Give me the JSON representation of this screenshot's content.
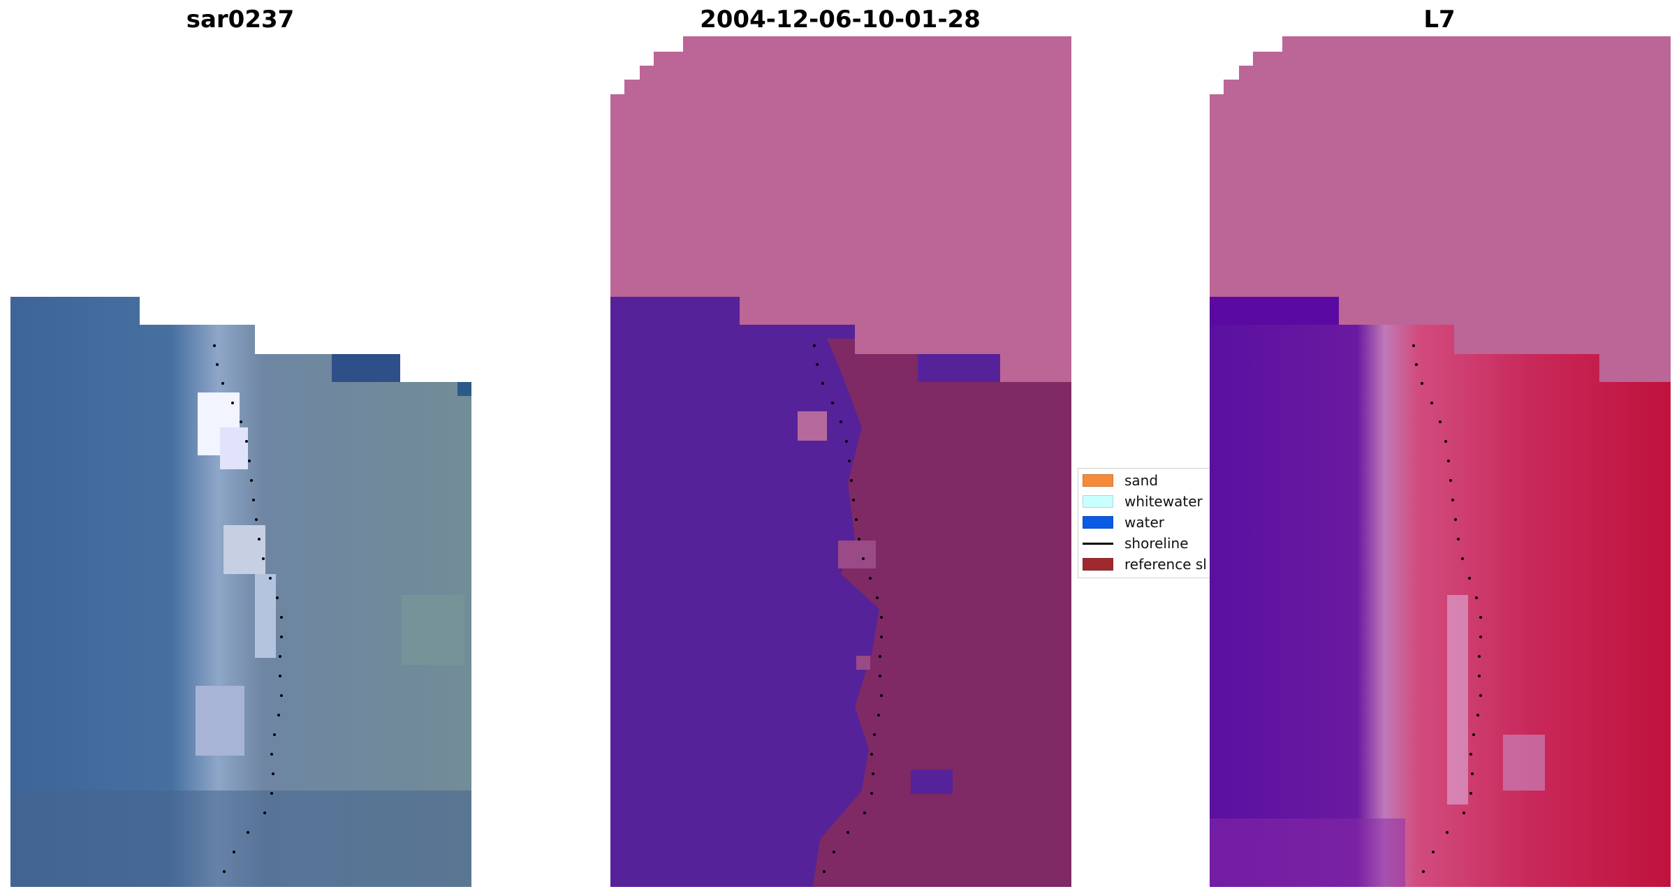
{
  "panels": [
    {
      "title": "sar0237"
    },
    {
      "title": "2004-12-06-10-01-28"
    },
    {
      "title": "L7"
    }
  ],
  "legend": {
    "items": [
      {
        "label": "sand",
        "color": "#f58a3a",
        "kind": "patch"
      },
      {
        "label": "whitewater",
        "color": "#c8ffff",
        "kind": "patch"
      },
      {
        "label": "water",
        "color": "#0a5be6",
        "kind": "patch"
      },
      {
        "label": "shoreline",
        "color": "#000000",
        "kind": "line"
      },
      {
        "label": "reference sl",
        "color": "#9e2a30",
        "kind": "patch"
      }
    ]
  },
  "colors": {
    "no_data": "#bc6597",
    "water_class": "#55229a",
    "land_class": "#7f2a64",
    "rgb_water": "#3f6699",
    "rgb_land": "#6c849a",
    "ndwi_water": "#5a10a0",
    "ndwi_land": "#c8204f"
  }
}
